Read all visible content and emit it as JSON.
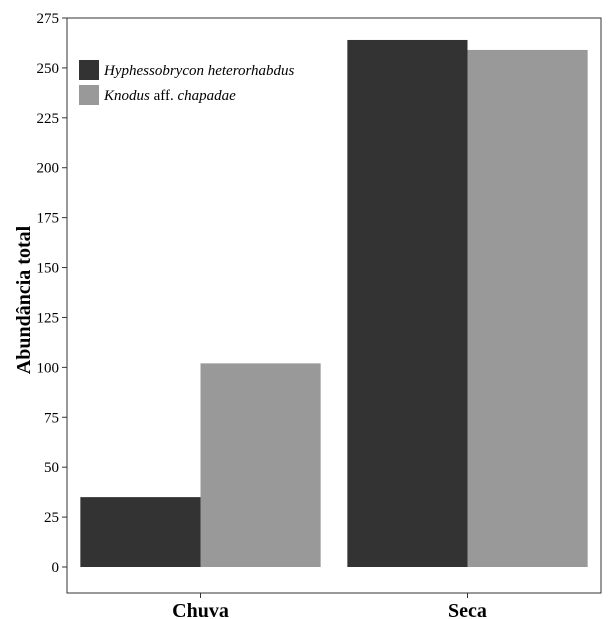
{
  "chart_data": {
    "type": "bar",
    "categories": [
      "Chuva",
      "Seca"
    ],
    "series": [
      {
        "name": "Hyphessobrycon heterorhabdus",
        "name_parts": [
          {
            "text": "Hyphessobrycon heterorhabdus",
            "italic": true
          }
        ],
        "color": "#333333",
        "values": [
          35,
          264
        ]
      },
      {
        "name": "Knodus aff. chapadae",
        "name_parts": [
          {
            "text": "Knodus",
            "italic": true
          },
          {
            "text": " aff. ",
            "italic": false
          },
          {
            "text": "chapadae",
            "italic": true
          }
        ],
        "color": "#999999",
        "values": [
          102,
          259
        ]
      }
    ],
    "ylabel": "Abundância total",
    "xlabel": "",
    "ylim": [
      0,
      275
    ],
    "yticks": [
      0,
      25,
      50,
      75,
      100,
      125,
      150,
      175,
      200,
      225,
      250,
      275
    ],
    "legend_position": "top-left",
    "grid": false
  }
}
